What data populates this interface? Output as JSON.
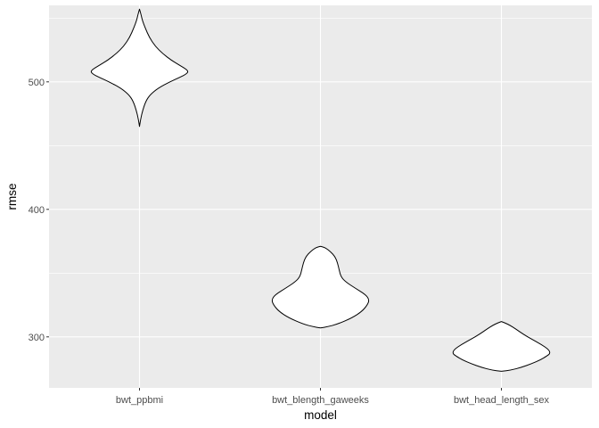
{
  "chart_data": {
    "type": "violin",
    "title": "",
    "xlabel": "model",
    "ylabel": "rmse",
    "categories": [
      "bwt_ppbmi",
      "bwt_blength_gaweeks",
      "bwt_head_length_sex"
    ],
    "ylim": [
      260,
      560
    ],
    "yticks": [
      300,
      400,
      500
    ],
    "grid": true,
    "legend": "none",
    "colors": {
      "panel": "#ebebeb",
      "grid": "#ffffff",
      "violin_fill": "#ffffff",
      "violin_stroke": "#000000",
      "tick_text": "#4d4d4d",
      "axis_text": "#000000"
    },
    "series": [
      {
        "category": "bwt_ppbmi",
        "profile": [
          [
            465,
            0.0
          ],
          [
            470,
            0.02
          ],
          [
            477,
            0.06
          ],
          [
            485,
            0.13
          ],
          [
            490,
            0.22
          ],
          [
            495,
            0.38
          ],
          [
            500,
            0.62
          ],
          [
            504,
            0.85
          ],
          [
            506,
            0.95
          ],
          [
            508,
            1.0
          ],
          [
            510,
            0.95
          ],
          [
            513,
            0.82
          ],
          [
            517,
            0.65
          ],
          [
            522,
            0.48
          ],
          [
            528,
            0.32
          ],
          [
            535,
            0.2
          ],
          [
            542,
            0.12
          ],
          [
            548,
            0.06
          ],
          [
            553,
            0.03
          ],
          [
            557,
            0.0
          ]
        ]
      },
      {
        "category": "bwt_blength_gaweeks",
        "profile": [
          [
            307,
            0.0
          ],
          [
            308,
            0.15
          ],
          [
            310,
            0.35
          ],
          [
            315,
            0.65
          ],
          [
            320,
            0.85
          ],
          [
            325,
            0.96
          ],
          [
            329,
            1.0
          ],
          [
            333,
            0.93
          ],
          [
            338,
            0.72
          ],
          [
            343,
            0.52
          ],
          [
            347,
            0.42
          ],
          [
            353,
            0.38
          ],
          [
            358,
            0.35
          ],
          [
            363,
            0.3
          ],
          [
            367,
            0.2
          ],
          [
            370,
            0.1
          ],
          [
            371,
            0.0
          ]
        ]
      },
      {
        "category": "bwt_head_length_sex",
        "profile": [
          [
            273,
            0.0
          ],
          [
            274,
            0.2
          ],
          [
            276,
            0.4
          ],
          [
            279,
            0.62
          ],
          [
            282,
            0.8
          ],
          [
            285,
            0.93
          ],
          [
            287,
            1.0
          ],
          [
            290,
            0.97
          ],
          [
            294,
            0.82
          ],
          [
            298,
            0.63
          ],
          [
            302,
            0.45
          ],
          [
            306,
            0.3
          ],
          [
            309,
            0.18
          ],
          [
            311,
            0.07
          ],
          [
            312,
            0.0
          ]
        ]
      }
    ]
  }
}
